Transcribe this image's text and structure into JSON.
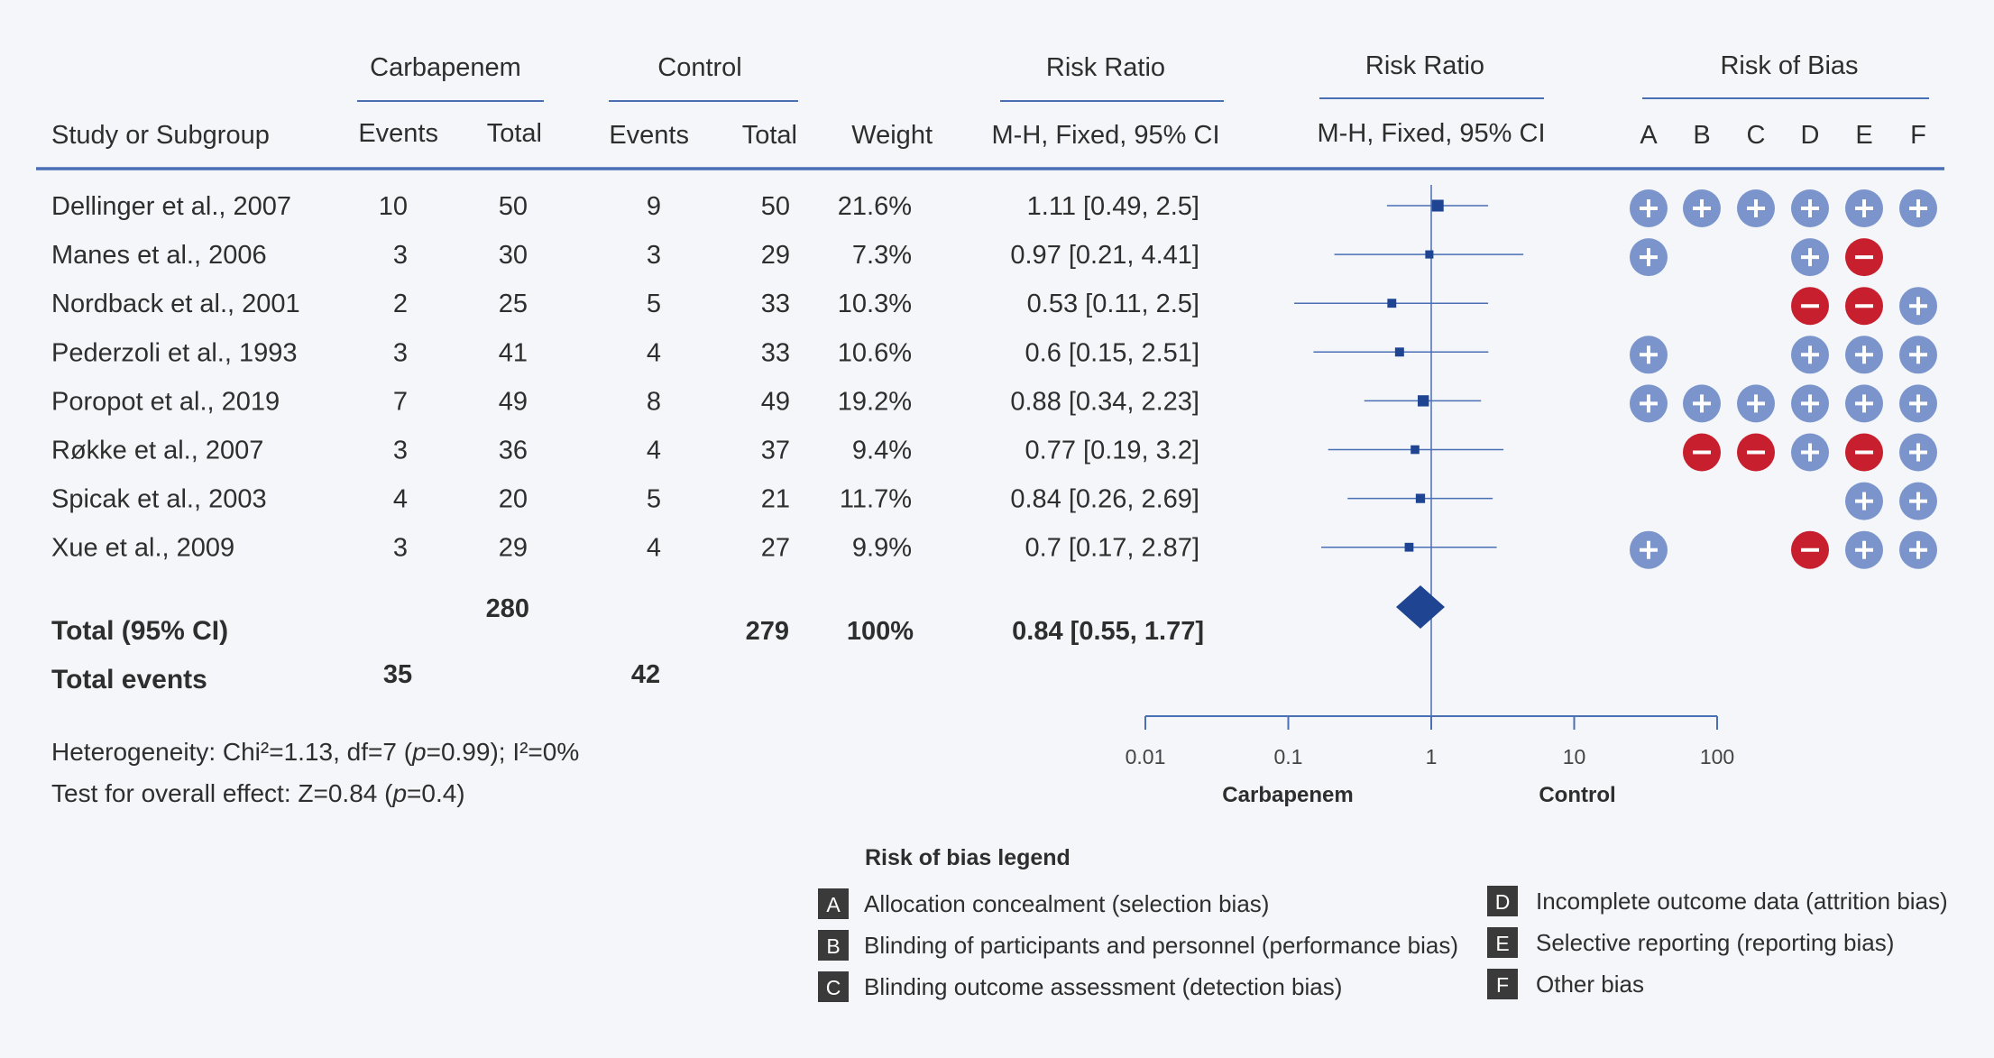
{
  "chart_data": {
    "type": "forest",
    "header": {
      "group1": "Carbapenem",
      "group2": "Control",
      "rr_text": "Risk Ratio",
      "rr_plot": "Risk Ratio",
      "bias": "Risk of Bias",
      "study": "Study or Subgroup",
      "events": "Events",
      "total": "Total",
      "weight": "Weight",
      "method_text": "M-H, Fixed, 95% CI",
      "method_plot": "M-H, Fixed, 95% CI"
    },
    "bias_domains": [
      "A",
      "B",
      "C",
      "D",
      "E",
      "F"
    ],
    "studies": [
      {
        "name": "Dellinger et al., 2007",
        "e1": "10",
        "n1": "50",
        "e2": "9",
        "n2": "50",
        "weight": "21.6%",
        "ci_text": "1.11 [0.49, 2.5]",
        "rr": 1.11,
        "lo": 0.49,
        "hi": 2.5,
        "w": 21.6,
        "bias": [
          "+",
          "+",
          "+",
          "+",
          "+",
          "+"
        ]
      },
      {
        "name": "Manes et al., 2006",
        "e1": "3",
        "n1": "30",
        "e2": "3",
        "n2": "29",
        "weight": "7.3%",
        "ci_text": "0.97 [0.21, 4.41]",
        "rr": 0.97,
        "lo": 0.21,
        "hi": 4.41,
        "w": 7.3,
        "bias": [
          "+",
          "",
          "",
          "+",
          "-",
          ""
        ]
      },
      {
        "name": "Nordback et al., 2001",
        "e1": "2",
        "n1": "25",
        "e2": "5",
        "n2": "33",
        "weight": "10.3%",
        "ci_text": "0.53 [0.11, 2.5]",
        "rr": 0.53,
        "lo": 0.11,
        "hi": 2.5,
        "w": 10.3,
        "bias": [
          "",
          "",
          "",
          "-",
          "-",
          "+"
        ]
      },
      {
        "name": "Pederzoli et al., 1993",
        "e1": "3",
        "n1": "41",
        "e2": "4",
        "n2": "33",
        "weight": "10.6%",
        "ci_text": "0.6 [0.15, 2.51]",
        "rr": 0.6,
        "lo": 0.15,
        "hi": 2.51,
        "w": 10.6,
        "bias": [
          "+",
          "",
          "",
          "+",
          "+",
          "+"
        ]
      },
      {
        "name": "Poropot et al., 2019",
        "e1": "7",
        "n1": "49",
        "e2": "8",
        "n2": "49",
        "weight": "19.2%",
        "ci_text": "0.88 [0.34, 2.23]",
        "rr": 0.88,
        "lo": 0.34,
        "hi": 2.23,
        "w": 19.2,
        "bias": [
          "+",
          "+",
          "+",
          "+",
          "+",
          "+"
        ]
      },
      {
        "name": "Røkke et al., 2007",
        "e1": "3",
        "n1": "36",
        "e2": "4",
        "n2": "37",
        "weight": "9.4%",
        "ci_text": "0.77 [0.19, 3.2]",
        "rr": 0.77,
        "lo": 0.19,
        "hi": 3.2,
        "w": 9.4,
        "bias": [
          "",
          "-",
          "-",
          "+",
          "-",
          "+"
        ]
      },
      {
        "name": "Spicak et al., 2003",
        "e1": "4",
        "n1": "20",
        "e2": "5",
        "n2": "21",
        "weight": "11.7%",
        "ci_text": "0.84 [0.26, 2.69]",
        "rr": 0.84,
        "lo": 0.26,
        "hi": 2.69,
        "w": 11.7,
        "bias": [
          "",
          "",
          "",
          "",
          "+",
          "+"
        ]
      },
      {
        "name": "Xue et al., 2009",
        "e1": "3",
        "n1": "29",
        "e2": "4",
        "n2": "27",
        "weight": "9.9%",
        "ci_text": "0.7 [0.17, 2.87]",
        "rr": 0.7,
        "lo": 0.17,
        "hi": 2.87,
        "w": 9.9,
        "bias": [
          "+",
          "",
          "",
          "-",
          "+",
          "+"
        ]
      }
    ],
    "total": {
      "label": "Total (95% CI)",
      "n1": "280",
      "n2": "279",
      "weight": "100%",
      "ci_text": "0.84 [0.55, 1.77]",
      "rr": 0.84,
      "lo": 0.55,
      "hi": 1.77
    },
    "total_events": {
      "label": "Total events",
      "e1": "35",
      "e2": "42"
    },
    "heterogeneity": {
      "prefix": "Heterogeneity: Chi²=1.13, df=7 (",
      "p": "p",
      "rest": "=0.99); I²=0%"
    },
    "overall_effect": {
      "prefix": "Test for overall effect: Z=0.84 (",
      "p": "p",
      "rest": "=0.4)"
    },
    "axis": {
      "scale": "log",
      "ticks": [
        0.01,
        0.1,
        1,
        10,
        100
      ],
      "tick_labels": [
        "0.01",
        "0.1",
        "1",
        "10",
        "100"
      ],
      "left_label": "Carbapenem",
      "right_label": "Control",
      "null_value": 1
    },
    "legend": {
      "title": "Risk of bias legend",
      "items": [
        {
          "key": "A",
          "text": "Allocation concealment (selection bias)"
        },
        {
          "key": "B",
          "text": "Blinding of participants and personnel (performance bias)"
        },
        {
          "key": "C",
          "text": "Blinding outcome assessment (detection bias)"
        },
        {
          "key": "D",
          "text": "Incomplete outcome data (attrition bias)"
        },
        {
          "key": "E",
          "text": "Selective reporting (reporting bias)"
        },
        {
          "key": "F",
          "text": "Other bias"
        }
      ]
    },
    "colors": {
      "accent": "#4a6fb5",
      "marker": "#1f4592",
      "low_risk": "#7b95cc",
      "high_risk": "#c71f2d",
      "text": "#2e2e2e",
      "legend_key": "#3a3a3a"
    }
  }
}
